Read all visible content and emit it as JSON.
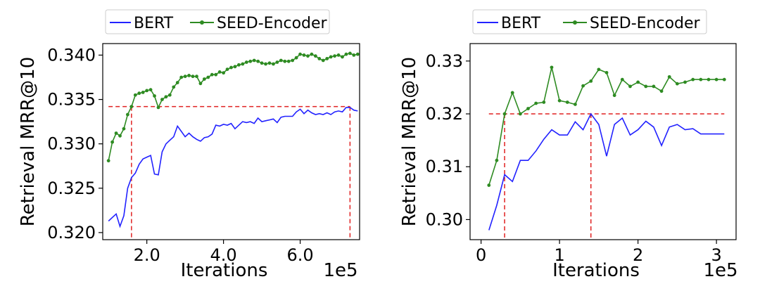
{
  "colors": {
    "bert": "#2222ff",
    "seed": "#2e8b22",
    "ref": "#e02020",
    "axis": "#000000"
  },
  "chart_data": [
    {
      "type": "line",
      "xlabel": "Iterations",
      "x_multiplier": "1e5",
      "ylabel": "Retrieval MRR@10",
      "xlim": [
        0.85,
        7.55
      ],
      "ylim": [
        0.3192,
        0.3413
      ],
      "xticks": [
        2.0,
        4.0,
        6.0
      ],
      "xtick_labels": [
        "2.0",
        "4.0",
        "6.0"
      ],
      "yticks": [
        0.32,
        0.325,
        0.33,
        0.335,
        0.34
      ],
      "ytick_labels": [
        "0.320",
        "0.325",
        "0.330",
        "0.335",
        "0.340"
      ],
      "legend": {
        "placement": "top-outside",
        "entries": [
          "BERT",
          "SEED-Encoder"
        ]
      },
      "reference": {
        "y": 0.3342,
        "x_start": 1.0,
        "x_end": 7.3,
        "verticals": [
          1.6,
          7.3
        ]
      },
      "series": [
        {
          "name": "BERT",
          "x": [
            1.0,
            1.1,
            1.2,
            1.3,
            1.4,
            1.5,
            1.6,
            1.7,
            1.8,
            1.9,
            2.0,
            2.1,
            2.2,
            2.3,
            2.4,
            2.5,
            2.6,
            2.7,
            2.8,
            2.9,
            3.0,
            3.1,
            3.2,
            3.3,
            3.4,
            3.5,
            3.6,
            3.7,
            3.8,
            3.9,
            4.0,
            4.1,
            4.2,
            4.3,
            4.4,
            4.5,
            4.6,
            4.7,
            4.8,
            4.9,
            5.0,
            5.1,
            5.2,
            5.3,
            5.4,
            5.5,
            5.6,
            5.7,
            5.8,
            5.9,
            6.0,
            6.1,
            6.2,
            6.3,
            6.4,
            6.5,
            6.6,
            6.7,
            6.8,
            6.9,
            7.0,
            7.1,
            7.2,
            7.3,
            7.4,
            7.5
          ],
          "y": [
            0.3213,
            0.3217,
            0.3221,
            0.3207,
            0.3219,
            0.325,
            0.3262,
            0.3267,
            0.3277,
            0.3283,
            0.3285,
            0.3287,
            0.3266,
            0.3265,
            0.3291,
            0.33,
            0.3304,
            0.3308,
            0.332,
            0.3314,
            0.3308,
            0.3312,
            0.3308,
            0.3305,
            0.3303,
            0.3307,
            0.3308,
            0.3311,
            0.3321,
            0.332,
            0.3322,
            0.3321,
            0.3323,
            0.3317,
            0.3321,
            0.3325,
            0.3324,
            0.3325,
            0.3323,
            0.3329,
            0.3325,
            0.3326,
            0.3327,
            0.3328,
            0.3324,
            0.333,
            0.3331,
            0.3331,
            0.3331,
            0.3336,
            0.3339,
            0.3334,
            0.3338,
            0.3335,
            0.3333,
            0.3334,
            0.3333,
            0.3335,
            0.3333,
            0.3336,
            0.3337,
            0.3336,
            0.3341,
            0.3341,
            0.3338,
            0.3337
          ]
        },
        {
          "name": "SEED-Encoder",
          "x": [
            1.0,
            1.1,
            1.2,
            1.3,
            1.4,
            1.5,
            1.6,
            1.7,
            1.8,
            1.9,
            2.0,
            2.1,
            2.2,
            2.3,
            2.4,
            2.5,
            2.6,
            2.7,
            2.8,
            2.9,
            3.0,
            3.1,
            3.2,
            3.3,
            3.4,
            3.5,
            3.6,
            3.7,
            3.8,
            3.9,
            4.0,
            4.1,
            4.2,
            4.3,
            4.4,
            4.5,
            4.6,
            4.7,
            4.8,
            4.9,
            5.0,
            5.1,
            5.2,
            5.3,
            5.4,
            5.5,
            5.6,
            5.7,
            5.8,
            5.9,
            6.0,
            6.1,
            6.2,
            6.3,
            6.4,
            6.5,
            6.6,
            6.7,
            6.8,
            6.9,
            7.0,
            7.1,
            7.2,
            7.3,
            7.4,
            7.5
          ],
          "y": [
            0.3281,
            0.3302,
            0.3312,
            0.3309,
            0.3317,
            0.3333,
            0.3342,
            0.3355,
            0.3357,
            0.3358,
            0.336,
            0.3361,
            0.3354,
            0.3341,
            0.335,
            0.3353,
            0.3355,
            0.3364,
            0.3369,
            0.3375,
            0.3376,
            0.3377,
            0.3376,
            0.3376,
            0.3368,
            0.3373,
            0.3375,
            0.3378,
            0.3378,
            0.3381,
            0.338,
            0.3384,
            0.3386,
            0.3387,
            0.3389,
            0.339,
            0.3392,
            0.3393,
            0.3394,
            0.3393,
            0.3391,
            0.339,
            0.3391,
            0.339,
            0.3392,
            0.3394,
            0.3393,
            0.3393,
            0.3394,
            0.3397,
            0.3401,
            0.34,
            0.3399,
            0.3401,
            0.3399,
            0.3396,
            0.3394,
            0.3396,
            0.3398,
            0.3399,
            0.34,
            0.3398,
            0.3401,
            0.3402,
            0.34,
            0.3401
          ]
        }
      ]
    },
    {
      "type": "line",
      "xlabel": "Iterations",
      "x_multiplier": "1e5",
      "ylabel": "Retrieval MRR@10",
      "xlim": [
        -0.14,
        3.25
      ],
      "ylim": [
        0.2962,
        0.3333
      ],
      "xticks": [
        0,
        1,
        2,
        3
      ],
      "xtick_labels": [
        "0",
        "1",
        "2",
        "3"
      ],
      "yticks": [
        0.3,
        0.31,
        0.32,
        0.33
      ],
      "ytick_labels": [
        "0.30",
        "0.31",
        "0.32",
        "0.33"
      ],
      "legend": {
        "placement": "top-outside",
        "entries": [
          "BERT",
          "SEED-Encoder"
        ]
      },
      "reference": {
        "y": 0.32,
        "x_start": 0.1,
        "x_end": 3.1,
        "verticals": [
          0.3,
          1.4
        ]
      },
      "series": [
        {
          "name": "BERT",
          "x": [
            0.1,
            0.2,
            0.3,
            0.4,
            0.5,
            0.6,
            0.7,
            0.8,
            0.9,
            1.0,
            1.1,
            1.2,
            1.3,
            1.4,
            1.5,
            1.6,
            1.7,
            1.8,
            1.9,
            2.0,
            2.1,
            2.2,
            2.3,
            2.4,
            2.5,
            2.6,
            2.7,
            2.8,
            2.9,
            3.0,
            3.1
          ],
          "y": [
            0.298,
            0.3027,
            0.3085,
            0.3072,
            0.3112,
            0.3112,
            0.313,
            0.3152,
            0.317,
            0.316,
            0.316,
            0.3185,
            0.317,
            0.32,
            0.318,
            0.312,
            0.318,
            0.3192,
            0.316,
            0.317,
            0.3186,
            0.3175,
            0.314,
            0.3175,
            0.318,
            0.317,
            0.3172,
            0.3162,
            0.3162,
            0.3162,
            0.3162
          ]
        },
        {
          "name": "SEED-Encoder",
          "x": [
            0.1,
            0.2,
            0.3,
            0.4,
            0.5,
            0.6,
            0.7,
            0.8,
            0.9,
            1.0,
            1.1,
            1.2,
            1.3,
            1.4,
            1.5,
            1.6,
            1.7,
            1.8,
            1.9,
            2.0,
            2.1,
            2.2,
            2.3,
            2.4,
            2.5,
            2.6,
            2.7,
            2.8,
            2.9,
            3.0,
            3.1
          ],
          "y": [
            0.3065,
            0.3112,
            0.32,
            0.324,
            0.32,
            0.321,
            0.322,
            0.3222,
            0.3288,
            0.3225,
            0.3222,
            0.3218,
            0.3253,
            0.3262,
            0.3284,
            0.3278,
            0.3235,
            0.3265,
            0.3252,
            0.326,
            0.3252,
            0.3252,
            0.3243,
            0.327,
            0.3257,
            0.326,
            0.3265,
            0.3265,
            0.3265,
            0.3265,
            0.3265
          ]
        }
      ]
    }
  ]
}
